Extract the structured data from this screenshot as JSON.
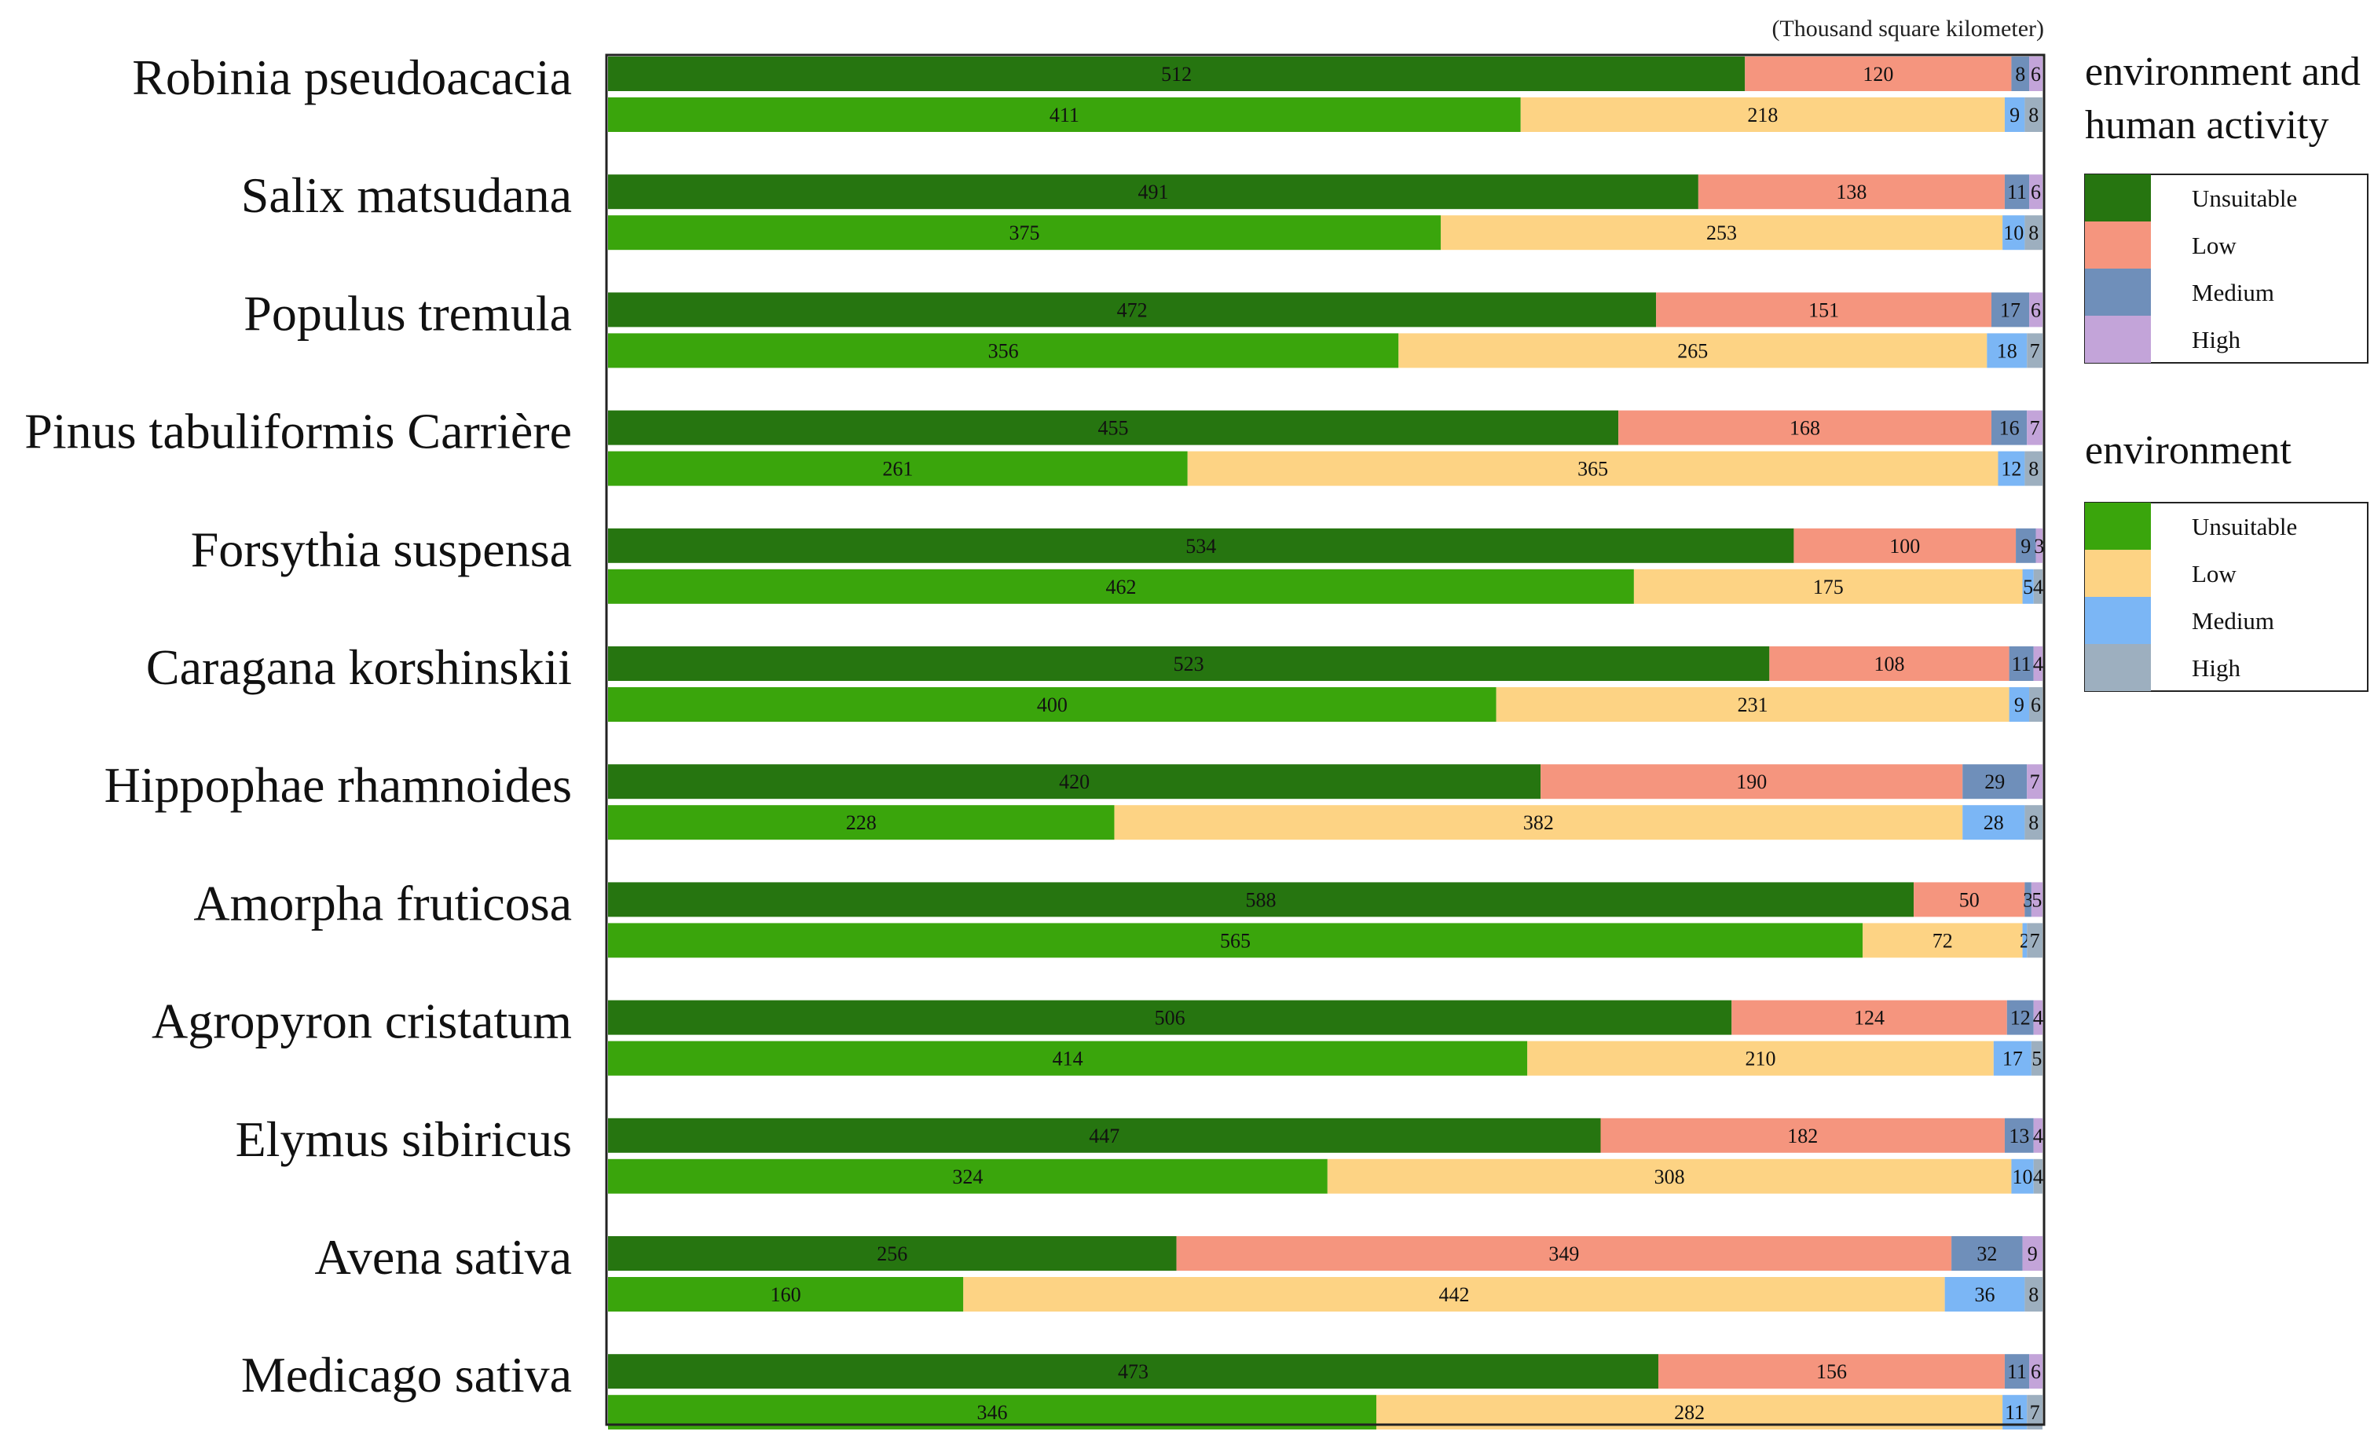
{
  "chart_data": {
    "type": "bar",
    "orientation": "horizontal-stacked",
    "unit_label": "(Thousand square kilometer)",
    "categories": [
      "Robinia pseudoacacia",
      "Salix matsudana",
      "Populus tremula",
      "Pinus tabuliformis Carrière",
      "Forsythia suspensa",
      "Caragana korshinskii",
      "Hippophae rhamnoides",
      "Amorpha fruticosa",
      "Agropyron cristatum",
      "Elymus sibiricus",
      "Avena sativa",
      "Medicago sativa"
    ],
    "levels": [
      "Unsuitable",
      "Low",
      "Medium",
      "High"
    ],
    "groups": [
      {
        "key": "env_human",
        "title": "environment and human activity",
        "title_lines": [
          "environment and",
          "human activity"
        ],
        "colors": [
          "#267510",
          "#f5957e",
          "#6f8fba",
          "#c3a4d9"
        ],
        "values": [
          [
            512,
            120,
            8,
            6
          ],
          [
            491,
            138,
            11,
            6
          ],
          [
            472,
            151,
            17,
            6
          ],
          [
            455,
            168,
            16,
            7
          ],
          [
            534,
            100,
            9,
            3
          ],
          [
            523,
            108,
            11,
            4
          ],
          [
            420,
            190,
            29,
            7
          ],
          [
            588,
            50,
            3,
            5
          ],
          [
            506,
            124,
            12,
            4
          ],
          [
            447,
            182,
            13,
            4
          ],
          [
            256,
            349,
            32,
            9
          ],
          [
            473,
            156,
            11,
            6
          ]
        ]
      },
      {
        "key": "env",
        "title": "environment",
        "title_lines": [
          "environment"
        ],
        "colors": [
          "#3aa50c",
          "#fdd384",
          "#7bb6f5",
          "#9dafbf"
        ],
        "values": [
          [
            411,
            218,
            9,
            8
          ],
          [
            375,
            253,
            10,
            8
          ],
          [
            356,
            265,
            18,
            7
          ],
          [
            261,
            365,
            12,
            8
          ],
          [
            462,
            175,
            5,
            4
          ],
          [
            400,
            231,
            9,
            6
          ],
          [
            228,
            382,
            28,
            8
          ],
          [
            565,
            72,
            2,
            7
          ],
          [
            414,
            210,
            17,
            5
          ],
          [
            324,
            308,
            10,
            4
          ],
          [
            160,
            442,
            36,
            8
          ],
          [
            346,
            282,
            11,
            7
          ]
        ]
      }
    ],
    "xlim": [
      0,
      646
    ],
    "grid": false,
    "legend_position": "right"
  }
}
